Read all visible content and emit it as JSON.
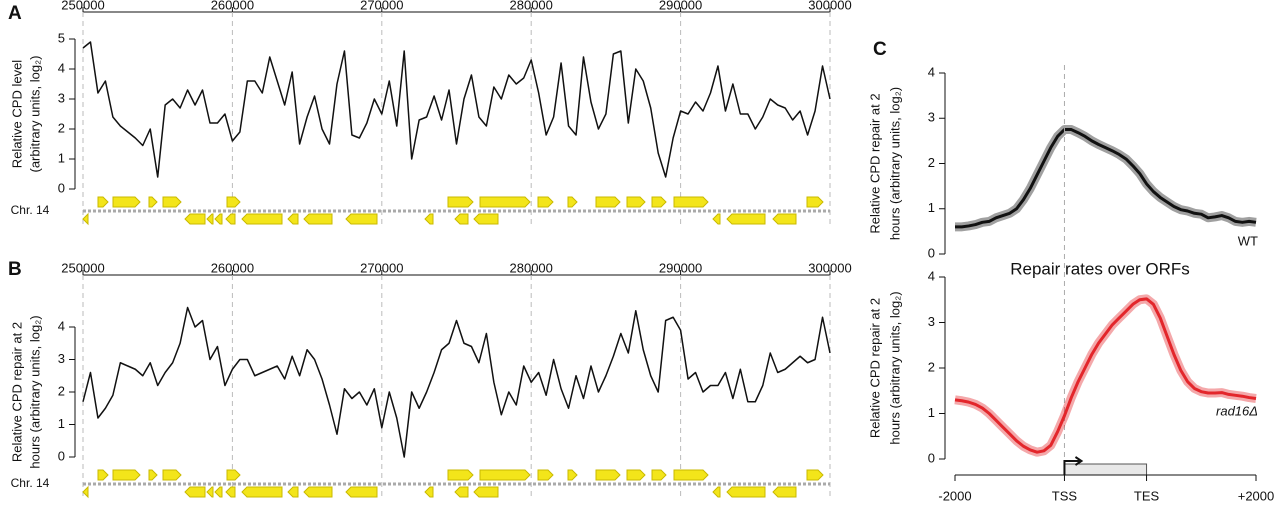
{
  "chart_data": [
    {
      "type": "line",
      "panel_label": "A",
      "ylabel": [
        "Relative CPD level",
        "(arbitrary units, log₂)"
      ],
      "track_label": "Chr. 14",
      "xlim": [
        250000,
        300000
      ],
      "xticks": [
        250000,
        260000,
        270000,
        280000,
        290000,
        300000
      ],
      "grid": "x",
      "ylim": [
        0,
        5
      ],
      "yticks": [
        0,
        1,
        2,
        3,
        4,
        5
      ],
      "x": [
        250000,
        250500,
        251000,
        251500,
        252000,
        252500,
        253000,
        253500,
        254000,
        254500,
        255000,
        255500,
        256000,
        256500,
        257000,
        257500,
        258000,
        258500,
        259000,
        259500,
        260000,
        260500,
        261000,
        261500,
        262000,
        262500,
        263000,
        263500,
        264000,
        264500,
        265000,
        265500,
        266000,
        266500,
        267000,
        267500,
        268000,
        268500,
        269000,
        269500,
        270000,
        270500,
        271000,
        271500,
        272000,
        272500,
        273000,
        273500,
        274000,
        274500,
        275000,
        275500,
        276000,
        276500,
        277000,
        277500,
        278000,
        278500,
        279000,
        279500,
        280000,
        280500,
        281000,
        281500,
        282000,
        282500,
        283000,
        283500,
        284000,
        284500,
        285000,
        285500,
        286000,
        286500,
        287000,
        287500,
        288000,
        288500,
        289000,
        289500,
        290000,
        290500,
        291000,
        291500,
        292000,
        292500,
        293000,
        293500,
        294000,
        294500,
        295000,
        295500,
        296000,
        296500,
        297000,
        297500,
        298000,
        298500,
        299000,
        299500,
        300000
      ],
      "series": [
        {
          "color": "#111111",
          "values": [
            4.7,
            4.9,
            3.2,
            3.6,
            2.4,
            2.1,
            1.9,
            1.7,
            1.45,
            2.0,
            0.4,
            2.8,
            3.0,
            2.7,
            3.3,
            2.8,
            3.3,
            2.2,
            2.2,
            2.5,
            1.6,
            1.9,
            3.6,
            3.6,
            3.2,
            4.4,
            3.6,
            2.8,
            3.9,
            1.5,
            2.4,
            3.1,
            2.0,
            1.5,
            3.5,
            4.6,
            1.8,
            1.7,
            2.2,
            3.0,
            2.5,
            3.6,
            2.1,
            4.6,
            1.0,
            2.3,
            2.4,
            3.1,
            2.3,
            3.3,
            1.5,
            3.0,
            3.8,
            2.4,
            2.1,
            3.4,
            3.0,
            3.8,
            3.5,
            3.7,
            4.3,
            3.2,
            1.8,
            2.4,
            4.2,
            2.1,
            1.8,
            4.4,
            2.9,
            2.0,
            2.5,
            4.5,
            4.6,
            2.2,
            4.0,
            3.6,
            2.7,
            1.2,
            0.4,
            1.7,
            2.6,
            2.5,
            2.9,
            2.6,
            3.2,
            4.1,
            2.6,
            3.5,
            2.5,
            2.5,
            2.0,
            2.4,
            3.0,
            2.8,
            2.7,
            2.3,
            2.6,
            1.8,
            2.6,
            4.1,
            3.0
          ]
        }
      ]
    },
    {
      "type": "line",
      "panel_label": "B",
      "ylabel": [
        "Relative CPD repair at 2",
        "hours (arbitrary units, log₂)"
      ],
      "track_label": "Chr. 14",
      "xlim": [
        250000,
        300000
      ],
      "xticks": [
        250000,
        260000,
        270000,
        280000,
        290000,
        300000
      ],
      "grid": "x",
      "ylim": [
        0,
        4
      ],
      "yticks": [
        0,
        1,
        2,
        3,
        4
      ],
      "x": [
        250000,
        250500,
        251000,
        251500,
        252000,
        252500,
        253000,
        253500,
        254000,
        254500,
        255000,
        255500,
        256000,
        256500,
        257000,
        257500,
        258000,
        258500,
        259000,
        259500,
        260000,
        260500,
        261000,
        261500,
        262000,
        262500,
        263000,
        263500,
        264000,
        264500,
        265000,
        265500,
        266000,
        266500,
        267000,
        267500,
        268000,
        268500,
        269000,
        269500,
        270000,
        270500,
        271000,
        271500,
        272000,
        272500,
        273000,
        273500,
        274000,
        274500,
        275000,
        275500,
        276000,
        276500,
        277000,
        277500,
        278000,
        278500,
        279000,
        279500,
        280000,
        280500,
        281000,
        281500,
        282000,
        282500,
        283000,
        283500,
        284000,
        284500,
        285000,
        285500,
        286000,
        286500,
        287000,
        287500,
        288000,
        288500,
        289000,
        289500,
        290000,
        290500,
        291000,
        291500,
        292000,
        292500,
        293000,
        293500,
        294000,
        294500,
        295000,
        295500,
        296000,
        296500,
        297000,
        297500,
        298000,
        298500,
        299000,
        299500,
        300000
      ],
      "series": [
        {
          "color": "#111111",
          "values": [
            1.7,
            2.6,
            1.2,
            1.5,
            1.9,
            2.9,
            2.8,
            2.7,
            2.5,
            2.9,
            2.2,
            2.6,
            2.9,
            3.5,
            4.6,
            4.0,
            4.2,
            3.0,
            3.4,
            2.2,
            2.7,
            3.0,
            3.0,
            2.5,
            2.6,
            2.7,
            2.8,
            2.4,
            3.1,
            2.5,
            3.3,
            3.0,
            2.4,
            1.6,
            0.7,
            2.1,
            1.8,
            2.0,
            1.6,
            2.1,
            0.9,
            2.0,
            1.2,
            0.0,
            2.0,
            1.5,
            2.0,
            2.6,
            3.3,
            3.5,
            4.2,
            3.5,
            3.4,
            2.9,
            3.8,
            2.3,
            1.3,
            2.0,
            1.6,
            2.8,
            2.3,
            2.6,
            1.9,
            3.0,
            2.1,
            1.5,
            2.5,
            1.8,
            2.8,
            2.0,
            2.5,
            3.1,
            3.8,
            3.2,
            4.5,
            3.3,
            2.5,
            2.0,
            4.2,
            4.3,
            3.9,
            2.4,
            2.6,
            2.0,
            2.2,
            2.2,
            2.6,
            1.8,
            2.7,
            1.7,
            1.7,
            2.2,
            3.2,
            2.6,
            2.7,
            2.9,
            3.1,
            2.9,
            3.0,
            4.3,
            3.2
          ]
        }
      ]
    },
    {
      "type": "line",
      "panel_label": "C",
      "ylabel": [
        "Relative CPD repair at 2",
        "hours (arbitrary units, log₂)"
      ],
      "ylim": [
        0,
        4
      ],
      "yticks": [
        0,
        1,
        2,
        3,
        4
      ],
      "series": [
        {
          "name": "WT",
          "color": "#111111",
          "values": [
            0.6,
            0.6,
            0.62,
            0.65,
            0.7,
            0.72,
            0.8,
            0.85,
            0.9,
            1.0,
            1.2,
            1.45,
            1.75,
            2.05,
            2.35,
            2.6,
            2.75,
            2.75,
            2.68,
            2.6,
            2.5,
            2.42,
            2.35,
            2.28,
            2.2,
            2.1,
            1.95,
            1.78,
            1.55,
            1.38,
            1.25,
            1.15,
            1.05,
            0.98,
            0.95,
            0.9,
            0.88,
            0.8,
            0.82,
            0.85,
            0.8,
            0.72,
            0.7,
            0.72,
            0.7
          ]
        }
      ]
    },
    {
      "type": "line",
      "title": "Repair rates over ORFs",
      "ylabel": [
        "Relative CPD repair at 2",
        "hours (arbitrary units, log₂)"
      ],
      "categories": [
        "-2000",
        null,
        null,
        null,
        null,
        null,
        null,
        null,
        null,
        null,
        null,
        null,
        null,
        null,
        null,
        null,
        "TSS",
        null,
        null,
        null,
        null,
        null,
        null,
        null,
        null,
        null,
        null,
        null,
        "TES",
        null,
        null,
        null,
        null,
        null,
        null,
        null,
        null,
        null,
        null,
        null,
        null,
        null,
        null,
        null,
        "+2000"
      ],
      "ylim": [
        0,
        4
      ],
      "yticks": [
        0,
        1,
        2,
        3,
        4
      ],
      "series": [
        {
          "name": "rad16Δ",
          "color": "#e3262b",
          "values": [
            1.3,
            1.28,
            1.25,
            1.2,
            1.12,
            1.0,
            0.85,
            0.7,
            0.55,
            0.4,
            0.28,
            0.2,
            0.15,
            0.18,
            0.3,
            0.6,
            0.95,
            1.35,
            1.7,
            2.0,
            2.3,
            2.55,
            2.75,
            2.95,
            3.1,
            3.25,
            3.4,
            3.5,
            3.52,
            3.4,
            3.1,
            2.7,
            2.3,
            1.95,
            1.7,
            1.55,
            1.48,
            1.45,
            1.45,
            1.46,
            1.42,
            1.4,
            1.38,
            1.35,
            1.33
          ]
        }
      ]
    }
  ]
}
